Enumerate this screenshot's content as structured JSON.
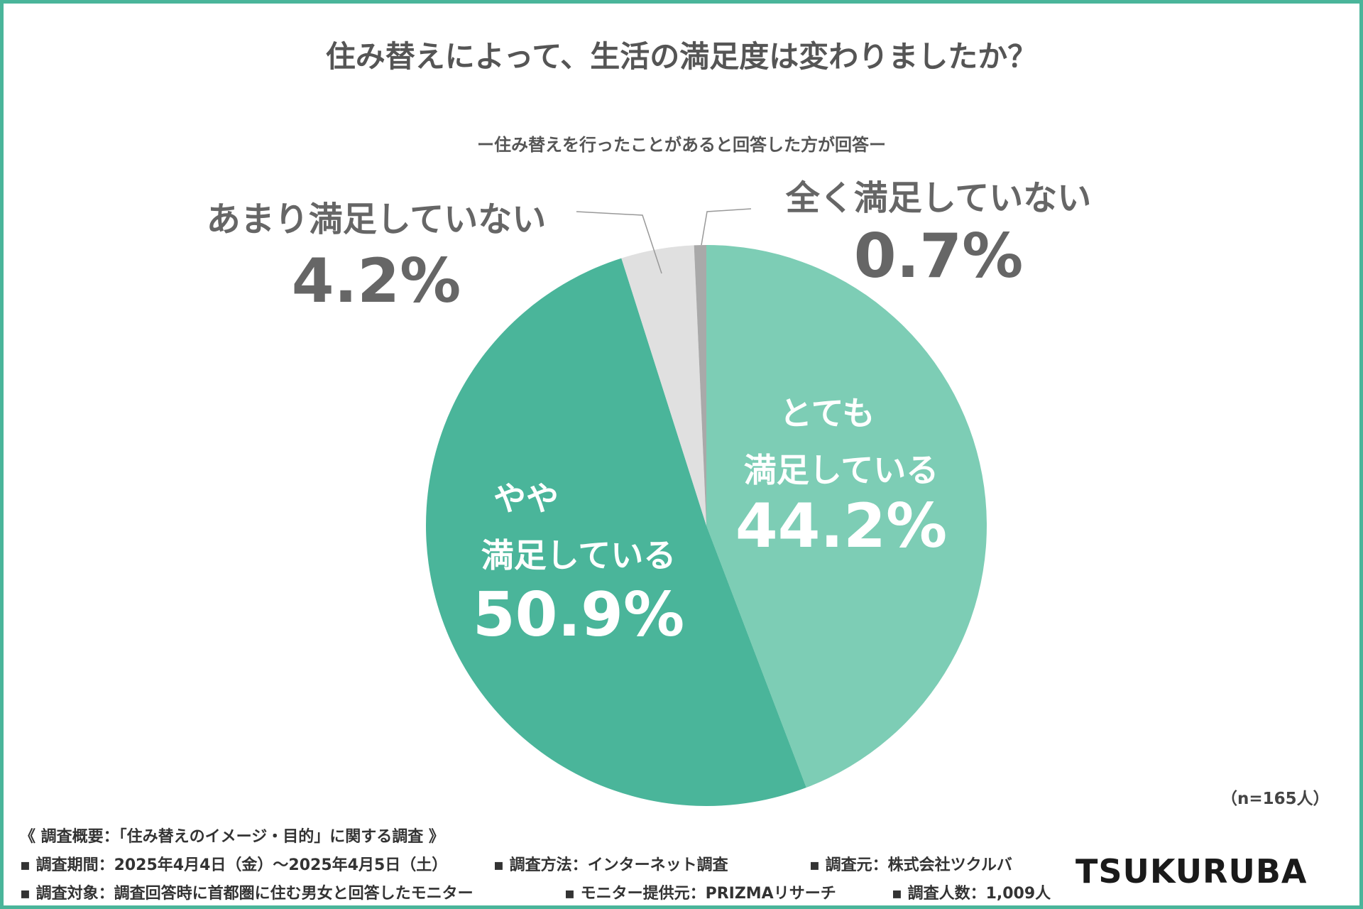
{
  "title": "住み替えによって、生活の満足度は変わりましたか？",
  "subtitle": "ー住み替えを行ったことがあると回答した方が回答ー",
  "chart_data": {
    "type": "pie",
    "title": "住み替えによって、生活の満足度は変わりましたか？",
    "unit": "%",
    "slices": [
      {
        "label_lines": [
          "とても",
          "満足している"
        ],
        "value": 44.2,
        "value_label": "44.2%",
        "color": "#7dcdb5"
      },
      {
        "label_lines": [
          "やや",
          "満足している"
        ],
        "value": 50.9,
        "value_label": "50.9%",
        "color": "#4ab59a"
      },
      {
        "label_lines": [
          "あまり満足していない"
        ],
        "value": 4.2,
        "value_label": "4.2%",
        "color": "#e0e0e0"
      },
      {
        "label_lines": [
          "全く満足していない"
        ],
        "value": 0.7,
        "value_label": "0.7%",
        "color": "#a9a9a9"
      }
    ],
    "n_label": "（n=165人）"
  },
  "footer": {
    "survey_name": "《 調査概要：「住み替えのイメージ・目的」に関する調査 》",
    "period": "▪ 調査期間：2025年4月4日（金）～2025年4月5日（土）",
    "method": "▪ 調査方法：インターネット調査",
    "source": "▪ 調査元：株式会社ツクルバ",
    "target": "▪ 調査対象：調査回答時に首都圏に住む男女と回答したモニター",
    "provider": "▪ モニター提供元：PRIZMAリサーチ",
    "count": "▪ 調査人数：1,009人"
  },
  "logo_text": "TSUKURUBA",
  "colors": {
    "frame": "#4ab59a",
    "label_text": "#666666",
    "leader": "#999999"
  }
}
